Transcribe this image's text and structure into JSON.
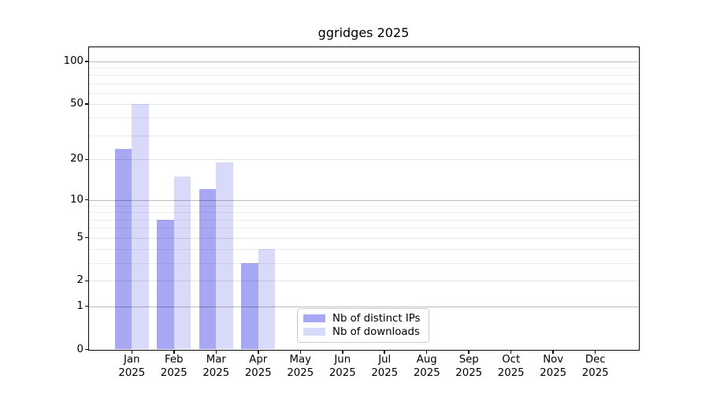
{
  "chart_data": {
    "type": "bar",
    "title": "ggridges 2025",
    "categories": [
      "Jan",
      "Feb",
      "Mar",
      "Apr",
      "May",
      "Jun",
      "Jul",
      "Aug",
      "Sep",
      "Oct",
      "Nov",
      "Dec"
    ],
    "x_year": "2025",
    "series": [
      {
        "name": "Nb of distinct IPs",
        "color": "#a7a7f3",
        "values": [
          24,
          7,
          12,
          3,
          0,
          0,
          0,
          0,
          0,
          0,
          0,
          0
        ]
      },
      {
        "name": "Nb of downloads",
        "color": "#d9d9f9",
        "values": [
          50,
          15,
          19,
          4,
          0,
          0,
          0,
          0,
          0,
          0,
          0,
          0
        ]
      }
    ],
    "yscale": "log10(1+y)",
    "yticks": [
      0,
      1,
      2,
      5,
      10,
      20,
      50,
      100
    ],
    "ylim": [
      0,
      125
    ],
    "xlabel": "",
    "ylabel": "",
    "grid": "horizontal major + log minors, drawn over bars",
    "legend_position": "lower center",
    "colors": {
      "grid_major": "rgba(0,0,0,0.26)",
      "grid_labeled_minor": "rgba(0,0,0,0.10)",
      "grid_minor": "rgba(0,0,0,0.07)",
      "axis": "#0a0a0a",
      "legend_border": "#cccccc"
    }
  }
}
